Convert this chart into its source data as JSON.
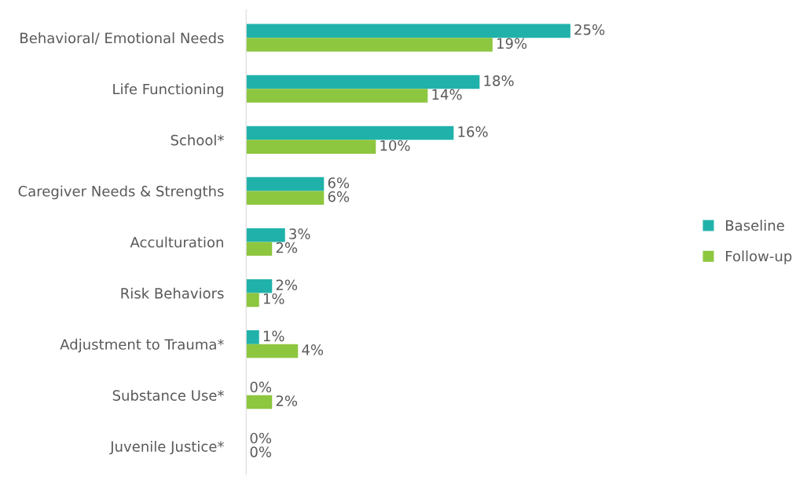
{
  "chart_data": {
    "type": "bar",
    "orientation": "horizontal",
    "categories": [
      "Behavioral/ Emotional Needs",
      "Life Functioning",
      "School*",
      "Caregiver Needs & Strengths",
      "Acculturation",
      "Risk Behaviors",
      "Adjustment to Trauma*",
      "Substance Use*",
      "Juvenile Justice*"
    ],
    "series": [
      {
        "name": "Baseline",
        "color": "#20b2aa",
        "values": [
          25,
          18,
          16,
          6,
          3,
          2,
          1,
          0,
          0
        ],
        "value_labels": [
          "25%",
          "18%",
          "16%",
          "6%",
          "3%",
          "2%",
          "1%",
          "0%",
          "0%"
        ]
      },
      {
        "name": "Follow-up",
        "color": "#8dc63f",
        "values": [
          19,
          14,
          10,
          6,
          2,
          1,
          4,
          2,
          0
        ],
        "value_labels": [
          "19%",
          "14%",
          "10%",
          "6%",
          "2%",
          "1%",
          "4%",
          "2%",
          "0%"
        ]
      }
    ],
    "legend": "right",
    "grid": false
  }
}
